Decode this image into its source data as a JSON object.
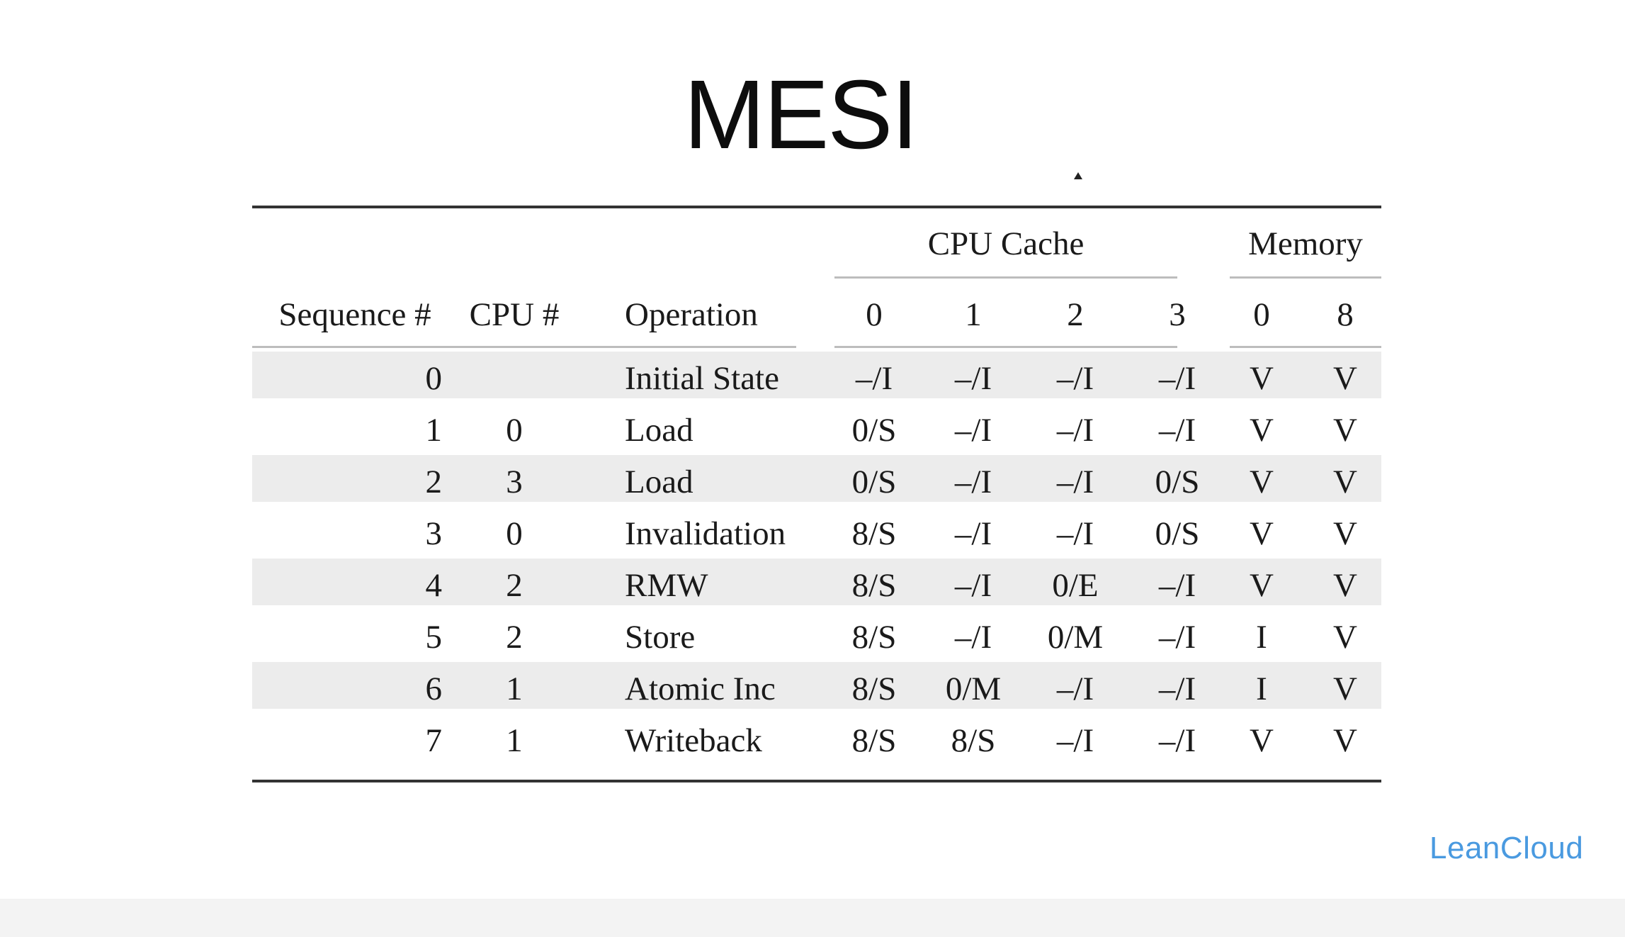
{
  "slide": {
    "title": "MESI",
    "brand": "LeanCloud"
  },
  "table": {
    "group_headers": {
      "cpu_cache": "CPU Cache",
      "memory": "Memory"
    },
    "columns": {
      "sequence": "Sequence #",
      "cpu": "CPU #",
      "operation": "Operation",
      "cache_0": "0",
      "cache_1": "1",
      "cache_2": "2",
      "cache_3": "3",
      "mem_0": "0",
      "mem_8": "8"
    },
    "rows": [
      {
        "seq": "0",
        "cpu": "",
        "op": "Initial State",
        "c0": "–/I",
        "c1": "–/I",
        "c2": "–/I",
        "c3": "–/I",
        "m0": "V",
        "m8": "V"
      },
      {
        "seq": "1",
        "cpu": "0",
        "op": "Load",
        "c0": "0/S",
        "c1": "–/I",
        "c2": "–/I",
        "c3": "–/I",
        "m0": "V",
        "m8": "V"
      },
      {
        "seq": "2",
        "cpu": "3",
        "op": "Load",
        "c0": "0/S",
        "c1": "–/I",
        "c2": "–/I",
        "c3": "0/S",
        "m0": "V",
        "m8": "V"
      },
      {
        "seq": "3",
        "cpu": "0",
        "op": "Invalidation",
        "c0": "8/S",
        "c1": "–/I",
        "c2": "–/I",
        "c3": "0/S",
        "m0": "V",
        "m8": "V"
      },
      {
        "seq": "4",
        "cpu": "2",
        "op": "RMW",
        "c0": "8/S",
        "c1": "–/I",
        "c2": "0/E",
        "c3": "–/I",
        "m0": "V",
        "m8": "V"
      },
      {
        "seq": "5",
        "cpu": "2",
        "op": "Store",
        "c0": "8/S",
        "c1": "–/I",
        "c2": "0/M",
        "c3": "–/I",
        "m0": "I",
        "m8": "V"
      },
      {
        "seq": "6",
        "cpu": "1",
        "op": "Atomic Inc",
        "c0": "8/S",
        "c1": "0/M",
        "c2": "–/I",
        "c3": "–/I",
        "m0": "I",
        "m8": "V"
      },
      {
        "seq": "7",
        "cpu": "1",
        "op": "Writeback",
        "c0": "8/S",
        "c1": "8/S",
        "c2": "–/I",
        "c3": "–/I",
        "m0": "V",
        "m8": "V"
      }
    ]
  }
}
